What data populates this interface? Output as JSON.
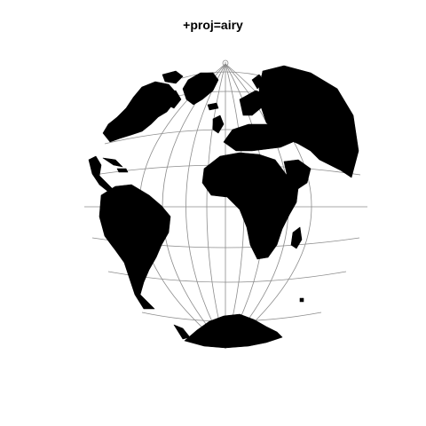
{
  "title": "+proj=airy",
  "map": {
    "projection": "airy",
    "graticule": true,
    "land_color": "#000000",
    "graticule_color": "#8c8c8c",
    "background_color": "#ffffff"
  }
}
